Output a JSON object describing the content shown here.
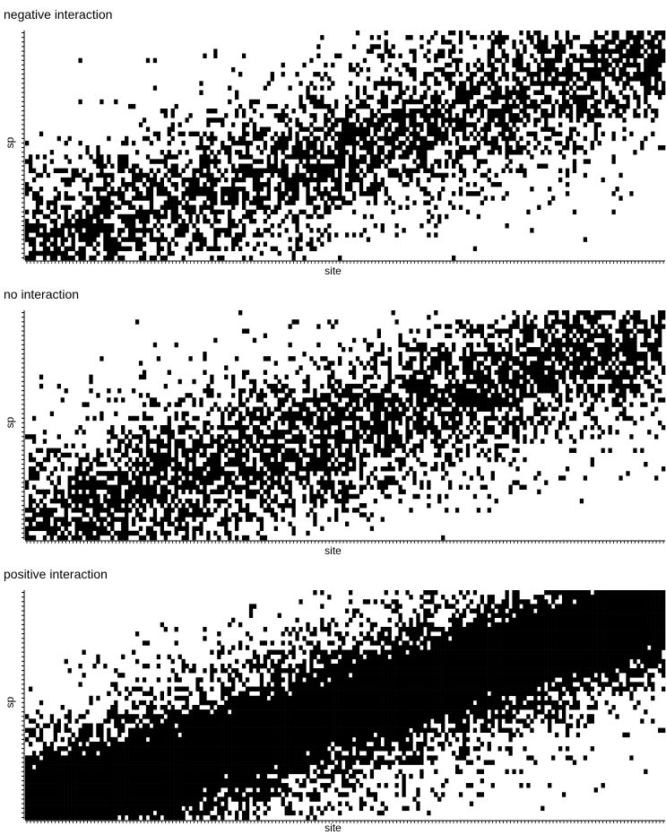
{
  "chart_data": [
    {
      "type": "heatmap",
      "title": "negative interaction",
      "xlabel": "site",
      "ylabel": "sp",
      "n_sites": 180,
      "n_species": 50,
      "values": "presence/absence (1 = black, 0 = white)",
      "density": 0.3,
      "seed": 11
    },
    {
      "type": "heatmap",
      "title": "no interaction",
      "xlabel": "site",
      "ylabel": "sp",
      "n_sites": 180,
      "n_species": 50,
      "values": "presence/absence (1 = black, 0 = white)",
      "density": 0.33,
      "seed": 23
    },
    {
      "type": "heatmap",
      "title": "positive interaction",
      "xlabel": "site",
      "ylabel": "sp",
      "n_sites": 180,
      "n_species": 50,
      "values": "presence/absence (1 = black, 0 = white)",
      "density": 0.55,
      "seed": 37
    }
  ],
  "colors": {
    "present": "#000000",
    "absent": "#ffffff"
  }
}
